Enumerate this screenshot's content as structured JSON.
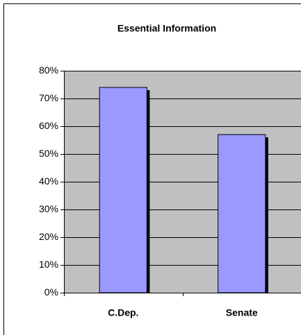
{
  "chart_data": {
    "type": "bar",
    "title": "Essential Information",
    "categories": [
      "C.Dep.",
      "Senate"
    ],
    "values": [
      74,
      57
    ],
    "color": "#9999ff",
    "ylim": [
      0,
      80
    ],
    "yticks": [
      {
        "value": 0,
        "label": "0%"
      },
      {
        "value": 10,
        "label": "10%"
      },
      {
        "value": 20,
        "label": "20%"
      },
      {
        "value": 30,
        "label": "30%"
      },
      {
        "value": 40,
        "label": "40%"
      },
      {
        "value": 50,
        "label": "50%"
      },
      {
        "value": 60,
        "label": "60%"
      },
      {
        "value": 70,
        "label": "70%"
      },
      {
        "value": 80,
        "label": "80%"
      }
    ],
    "grid": true
  }
}
